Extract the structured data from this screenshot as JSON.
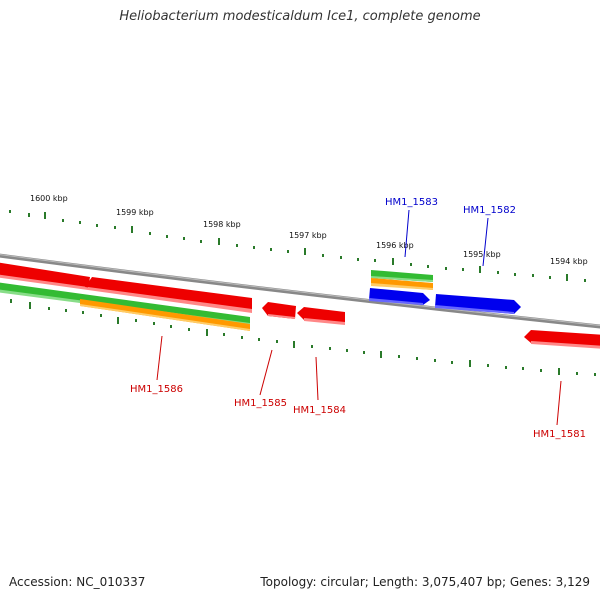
{
  "title": "Heliobacterium modesticaldum Ice1, complete genome",
  "footer": {
    "accession": "Accession: NC_010337",
    "summary": "Topology: circular; Length: 3,075,407 bp; Genes: 3,129"
  },
  "ruler_labels": [
    {
      "text": "1600 kbp"
    },
    {
      "text": "1599 kbp"
    },
    {
      "text": "1598 kbp"
    },
    {
      "text": "1597 kbp"
    },
    {
      "text": "1596 kbp"
    },
    {
      "text": "1595 kbp"
    },
    {
      "text": "1594 kbp"
    }
  ],
  "gene_labels": [
    {
      "text": "HM1_1583",
      "color": "#0000cc"
    },
    {
      "text": "HM1_1582",
      "color": "#0000cc"
    },
    {
      "text": "HM1_1586",
      "color": "#cc0000"
    },
    {
      "text": "HM1_1585",
      "color": "#cc0000"
    },
    {
      "text": "HM1_1584",
      "color": "#cc0000"
    },
    {
      "text": "HM1_1581",
      "color": "#cc0000"
    }
  ],
  "colors": {
    "backbone": "#888888",
    "tick": "#2a7a2a",
    "reverse_gene": "#ee0000",
    "forward_gene": "#0000ee",
    "green_feature": "#33bb33",
    "orange_feature": "#ff9900"
  }
}
